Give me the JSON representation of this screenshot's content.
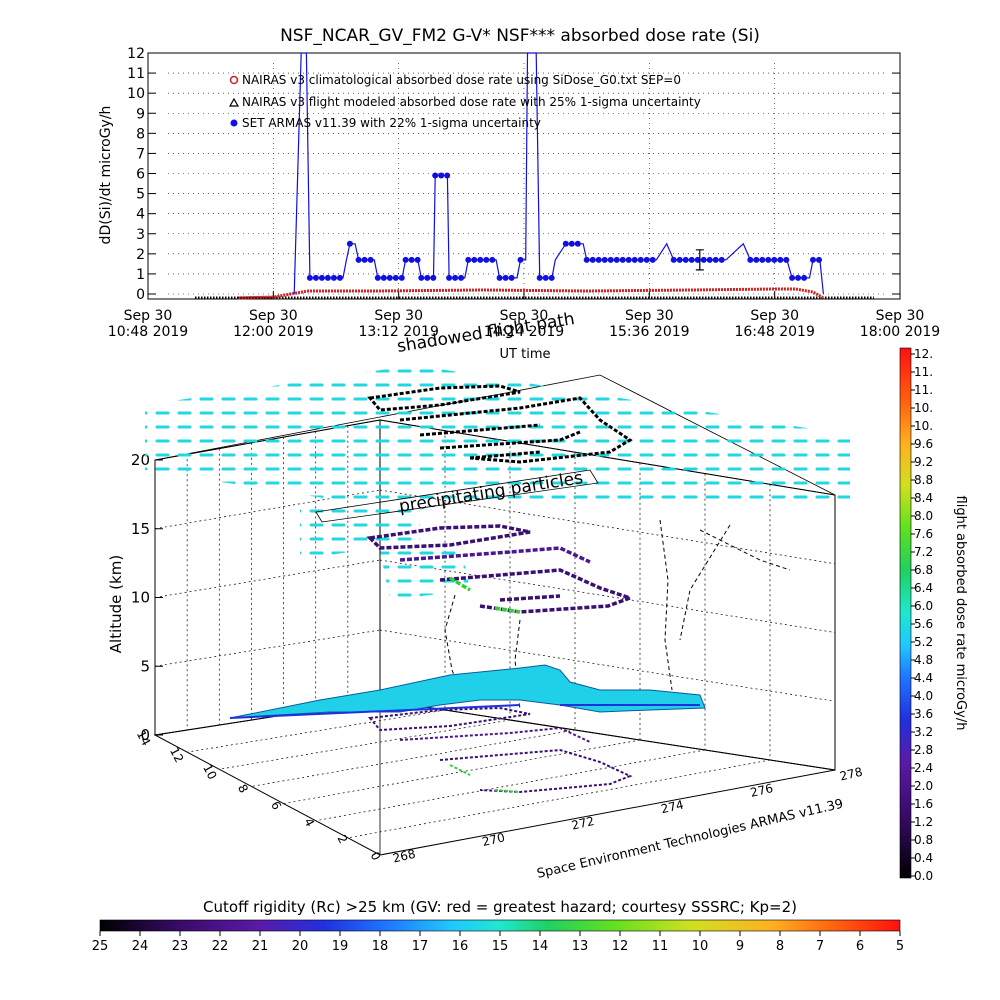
{
  "top_chart": {
    "title": "NSF_NCAR_GV_FM2 G-V* NSF*** absorbed dose rate (Si)",
    "ylabel": "dD(Si)/dt microGy/h",
    "xlabel": "UT time",
    "y_ticks": [
      "0",
      "1",
      "2",
      "3",
      "4",
      "5",
      "6",
      "7",
      "8",
      "9",
      "10",
      "11",
      "12"
    ],
    "x_ticks": [
      {
        "line1": "Sep 30",
        "line2": "10:48 2019"
      },
      {
        "line1": "Sep 30",
        "line2": "12:00 2019"
      },
      {
        "line1": "Sep 30",
        "line2": "13:12 2019"
      },
      {
        "line1": "Sep 30",
        "line2": "14:24 2019"
      },
      {
        "line1": "Sep 30",
        "line2": "15:36 2019"
      },
      {
        "line1": "Sep 30",
        "line2": "16:48 2019"
      },
      {
        "line1": "Sep 30",
        "line2": "18:00 2019"
      }
    ],
    "legend": [
      "NAIRAS v3 climatological absorbed dose rate using SiDose_G0.txt SEP=0",
      "NAIRAS v3 flight modeled absorbed dose rate with 25% 1-sigma uncertainty",
      "SET ARMAS v11.39 with 22% 1-sigma uncertainty"
    ],
    "colors": {
      "armas": "#1010e0",
      "nairas_clim": "#d02020",
      "nairas_flight": "#000000"
    }
  },
  "chart_data": {
    "type": "line",
    "title": "NSF_NCAR_GV_FM2 G-V* NSF*** absorbed dose rate (Si)",
    "xlabel": "UT time",
    "ylabel": "dD(Si)/dt microGy/h",
    "ylim": [
      0,
      12
    ],
    "xlim": [
      "10:48",
      "18:00"
    ],
    "series": [
      {
        "name": "SET ARMAS v11.39 with 22% 1-sigma uncertainty",
        "points": [
          {
            "x": "12:12",
            "y": 0
          },
          {
            "x": "12:16",
            "y": 12
          },
          {
            "x": "12:19",
            "y": 12
          },
          {
            "x": "12:21",
            "y": 0.8
          },
          {
            "x": "12:40",
            "y": 0.8
          },
          {
            "x": "12:42",
            "y": 1.7
          },
          {
            "x": "12:44",
            "y": 2.5
          },
          {
            "x": "12:47",
            "y": 2.5
          },
          {
            "x": "12:49",
            "y": 1.7
          },
          {
            "x": "12:58",
            "y": 1.7
          },
          {
            "x": "13:00",
            "y": 0.8
          },
          {
            "x": "13:14",
            "y": 0.8
          },
          {
            "x": "13:16",
            "y": 1.7
          },
          {
            "x": "13:23",
            "y": 1.7
          },
          {
            "x": "13:25",
            "y": 0.8
          },
          {
            "x": "13:32",
            "y": 0.8
          },
          {
            "x": "13:33",
            "y": 5.9
          },
          {
            "x": "13:40",
            "y": 5.9
          },
          {
            "x": "13:41",
            "y": 0.8
          },
          {
            "x": "13:50",
            "y": 0.8
          },
          {
            "x": "13:52",
            "y": 1.7
          },
          {
            "x": "14:08",
            "y": 1.7
          },
          {
            "x": "14:10",
            "y": 0.8
          },
          {
            "x": "14:20",
            "y": 0.8
          },
          {
            "x": "14:22",
            "y": 1.7
          },
          {
            "x": "14:25",
            "y": 1.7
          },
          {
            "x": "14:26",
            "y": 12
          },
          {
            "x": "14:31",
            "y": 12
          },
          {
            "x": "14:33",
            "y": 0.8
          },
          {
            "x": "14:40",
            "y": 0.8
          },
          {
            "x": "14:42",
            "y": 1.7
          },
          {
            "x": "14:48",
            "y": 2.5
          },
          {
            "x": "14:58",
            "y": 2.5
          },
          {
            "x": "15:00",
            "y": 1.7
          },
          {
            "x": "15:40",
            "y": 1.7
          },
          {
            "x": "15:46",
            "y": 2.5
          },
          {
            "x": "15:50",
            "y": 1.7
          },
          {
            "x": "16:20",
            "y": 1.7
          },
          {
            "x": "16:30",
            "y": 2.5
          },
          {
            "x": "16:34",
            "y": 1.7
          },
          {
            "x": "16:55",
            "y": 1.7
          },
          {
            "x": "16:58",
            "y": 0.8
          },
          {
            "x": "17:08",
            "y": 0.8
          },
          {
            "x": "17:10",
            "y": 1.7
          },
          {
            "x": "17:14",
            "y": 1.7
          },
          {
            "x": "17:16",
            "y": 0
          }
        ]
      },
      {
        "name": "NAIRAS v3 climatological absorbed dose rate using SiDose_G0.txt SEP=0",
        "points": [
          {
            "x": "11:40",
            "y": 0
          },
          {
            "x": "12:00",
            "y": 0.05
          },
          {
            "x": "12:10",
            "y": 0.2
          },
          {
            "x": "12:20",
            "y": 0.35
          },
          {
            "x": "13:00",
            "y": 0.35
          },
          {
            "x": "14:00",
            "y": 0.4
          },
          {
            "x": "15:00",
            "y": 0.35
          },
          {
            "x": "16:00",
            "y": 0.4
          },
          {
            "x": "16:48",
            "y": 0.45
          },
          {
            "x": "17:00",
            "y": 0.45
          },
          {
            "x": "17:10",
            "y": 0.3
          },
          {
            "x": "17:16",
            "y": 0
          }
        ]
      },
      {
        "name": "NAIRAS v3 flight modeled absorbed dose rate with 25% 1-sigma uncertainty",
        "points": [
          {
            "x": "11:15",
            "y": 0
          },
          {
            "x": "17:45",
            "y": 0
          }
        ]
      }
    ]
  },
  "scene": {
    "ylabel": "Altitude (km)",
    "altitude_ticks": [
      "0",
      "5",
      "10",
      "15",
      "20"
    ],
    "left_axis_ticks": [
      "14",
      "12",
      "10",
      "8",
      "6",
      "4",
      "2",
      "0"
    ],
    "right_axis_ticks": [
      "268",
      "270",
      "272",
      "274",
      "276",
      "278"
    ],
    "annotation_shadowed": "shadowed flight path",
    "annotation_precip": "precipitating particles",
    "credit": "Space Environment Technologies ARMAS v11.39"
  },
  "colorbar_right": {
    "label": "flight absorbed dose rate microGy/h",
    "ticks": [
      "0.0",
      "0.4",
      "0.8",
      "1.2",
      "1.6",
      "2.0",
      "2.4",
      "2.8",
      "3.2",
      "3.6",
      "4.0",
      "4.4",
      "4.8",
      "5.2",
      "5.6",
      "6.0",
      "6.4",
      "6.8",
      "7.2",
      "7.6",
      "8.0",
      "8.4",
      "8.8",
      "9.2",
      "9.6",
      "10.",
      "10.",
      "11.",
      "11.",
      "12."
    ]
  },
  "colorbar_bottom": {
    "title": "Cutoff rigidity (Rc) >25 km (GV: red = greatest hazard; courtesy SSSRC; Kp=2)",
    "ticks": [
      "25",
      "24",
      "23",
      "22",
      "21",
      "20",
      "19",
      "18",
      "17",
      "16",
      "15",
      "14",
      "13",
      "12",
      "11",
      "10",
      "9",
      "8",
      "7",
      "6",
      "5"
    ]
  }
}
